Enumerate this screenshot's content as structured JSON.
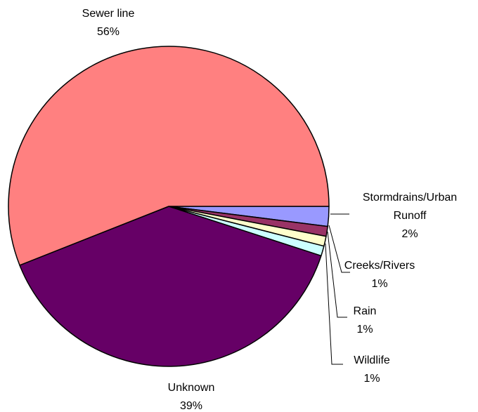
{
  "chart_data": {
    "type": "pie",
    "title": "",
    "slices": [
      {
        "label_lines": [
          "Stormdrains/Urban",
          "Runoff"
        ],
        "percent_label": "2%",
        "value": 2,
        "color": "#9999ff"
      },
      {
        "label_lines": [
          "Creeks/Rivers"
        ],
        "percent_label": "1%",
        "value": 1,
        "color": "#993366"
      },
      {
        "label_lines": [
          "Rain"
        ],
        "percent_label": "1%",
        "value": 1,
        "color": "#ffffcc"
      },
      {
        "label_lines": [
          "Wildlife"
        ],
        "percent_label": "1%",
        "value": 1,
        "color": "#ccffff"
      },
      {
        "label_lines": [
          "Unknown"
        ],
        "percent_label": "39%",
        "value": 39,
        "color": "#660066"
      },
      {
        "label_lines": [
          "Sewer line"
        ],
        "percent_label": "56%",
        "value": 56,
        "color": "#ff8080"
      }
    ],
    "start_angle_deg": 0,
    "direction": "clockwise",
    "legend": "none",
    "leader_lines_for": [
      "Stormdrains/Urban",
      "Creeks/Rivers",
      "Rain",
      "Wildlife"
    ]
  }
}
